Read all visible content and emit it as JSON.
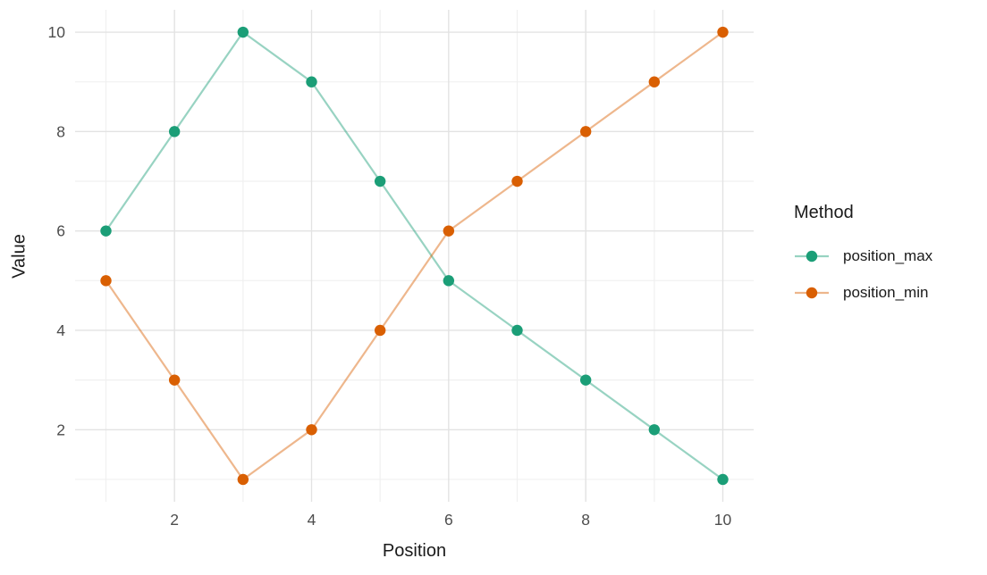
{
  "chart_data": {
    "type": "line",
    "title": "",
    "xlabel": "Position",
    "ylabel": "Value",
    "x": [
      1,
      2,
      3,
      4,
      5,
      6,
      7,
      8,
      9,
      10
    ],
    "series": [
      {
        "name": "position_max",
        "color": "#1B9E77",
        "values": [
          6,
          8,
          10,
          9,
          7,
          5,
          4,
          3,
          2,
          1
        ]
      },
      {
        "name": "position_min",
        "color": "#D95F02",
        "values": [
          5,
          3,
          1,
          2,
          4,
          6,
          7,
          8,
          9,
          10
        ]
      }
    ],
    "xlim": [
      1,
      10
    ],
    "ylim": [
      1,
      10
    ],
    "x_ticks": [
      2,
      4,
      6,
      8,
      10
    ],
    "y_ticks": [
      2,
      4,
      6,
      8,
      10
    ],
    "x_minor_ticks": [
      1,
      3,
      5,
      7,
      9
    ],
    "y_minor_ticks": [
      1,
      3,
      5,
      7,
      9
    ],
    "grid": true,
    "legend": {
      "title": "Method",
      "position": "right"
    },
    "line_opacity": 0.45,
    "point_radius": 6.2
  },
  "style_colors": {
    "background": "#ffffff",
    "major_grid": "#e3e3e3",
    "minor_grid": "#f0f0f0",
    "tick_label": "#4d4d4d",
    "axis_title": "#1a1a1a"
  }
}
